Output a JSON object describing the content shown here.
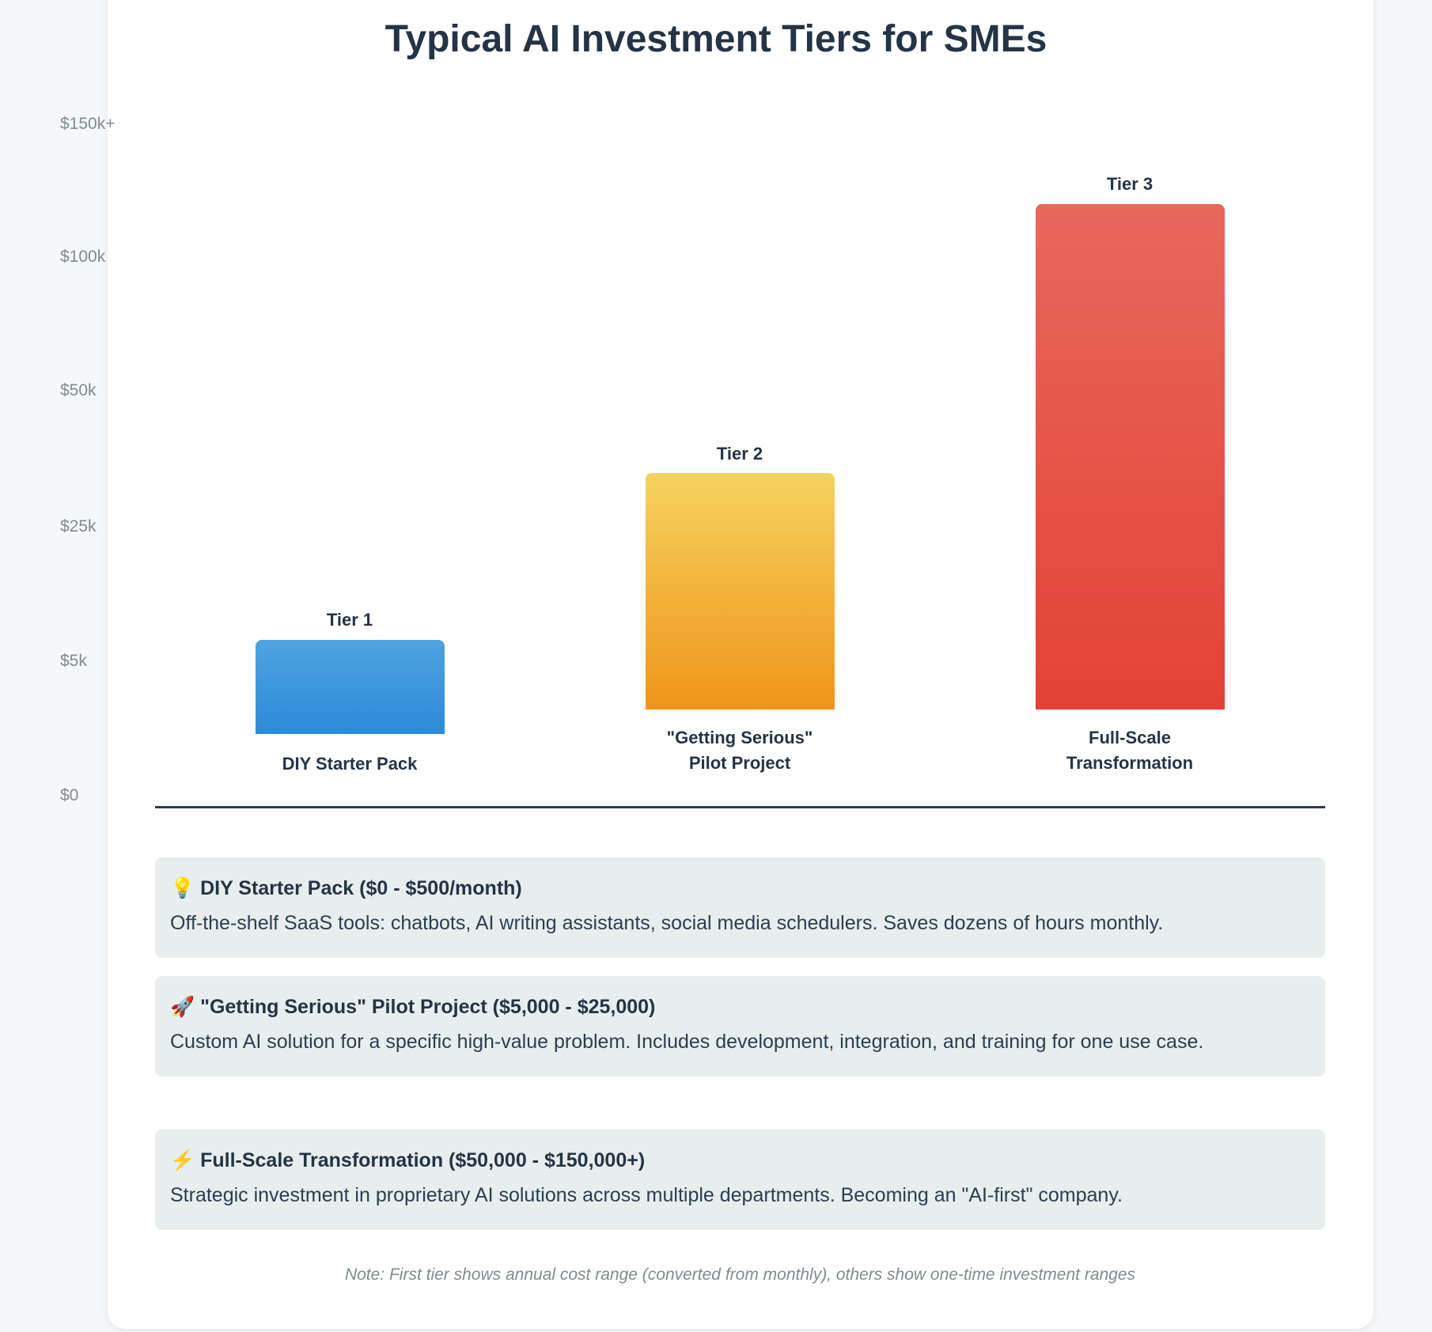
{
  "title": "Typical AI Investment Tiers for SMEs",
  "chart_data": {
    "type": "bar",
    "title": "Typical AI Investment Tiers for SMEs",
    "y_ticks": [
      "$150k+",
      "$100k",
      "$50k",
      "$25k",
      "$5k",
      "$0"
    ],
    "categories": [
      "DIY Starter Pack",
      "\"Getting Serious\" Pilot Project",
      "Full-Scale Transformation"
    ],
    "bars": [
      {
        "tier": "Tier 1",
        "label_line1": "DIY Starter Pack",
        "label_line2": "",
        "min": 0,
        "max": 6000,
        "color_top": "#4fa3e0",
        "color_bottom": "#2d8ad8"
      },
      {
        "tier": "Tier 2",
        "label_line1": "\"Getting Serious\"",
        "label_line2": "Pilot Project",
        "min": 5000,
        "max": 25000,
        "color_top": "#f4d35e",
        "color_bottom": "#f0941a"
      },
      {
        "tier": "Tier 3",
        "label_line1": "Full-Scale",
        "label_line2": "Transformation",
        "min": 50000,
        "max": 150000,
        "color_top": "#e8685d",
        "color_bottom": "#e34234"
      }
    ]
  },
  "details": [
    {
      "icon": "💡",
      "heading": "DIY Starter Pack ($0 - $500/month)",
      "text": "Off-the-shelf SaaS tools: chatbots, AI writing assistants, social media schedulers. Saves dozens of hours monthly."
    },
    {
      "icon": "🚀",
      "heading": "\"Getting Serious\" Pilot Project ($5,000 - $25,000)",
      "text": "Custom AI solution for a specific high-value problem. Includes development, integration, and training for one use case."
    },
    {
      "icon": "⚡",
      "heading": "Full-Scale Transformation ($50,000 - $150,000+)",
      "text": "Strategic investment in proprietary AI solutions across multiple departments. Becoming an \"AI-first\" company."
    }
  ],
  "note": "Note: First tier shows annual cost range (converted from monthly), others show one-time investment ranges"
}
